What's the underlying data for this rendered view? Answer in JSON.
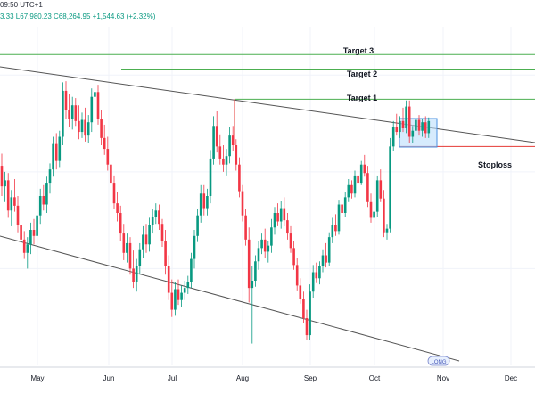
{
  "header": {
    "time": "09:50 UTC+1",
    "quote": "3.33  L67,980.23  C68,264.95  +1,544.63 (+2.32%)"
  },
  "colors": {
    "up": "#089981",
    "down": "#f23645",
    "target_line": "#4caf50",
    "stoploss_line": "#e53935",
    "channel_line": "#555555",
    "zone_fill": "#bbdefb",
    "zone_border": "#4a90e2"
  },
  "chart_data": {
    "type": "candlestick",
    "x_tick_labels": [
      "May",
      "Jun",
      "Jul",
      "Aug",
      "Sep",
      "Oct",
      "Nov",
      "Dec"
    ],
    "ylim": [
      48000,
      76000
    ],
    "levels": [
      {
        "name": "Target 3",
        "value": 73700
      },
      {
        "name": "Target 2",
        "value": 72500
      },
      {
        "name": "Target 1",
        "value": 70000
      },
      {
        "name": "Stoploss",
        "value": 66100
      }
    ],
    "annotations": [
      "Target 3",
      "Target 2",
      "Target 1",
      "Stoploss"
    ],
    "badge_label": "LONG",
    "series": [
      {
        "name": "price",
        "ohlc": [
          [
            64500,
            65500,
            62000,
            62800
          ],
          [
            62800,
            64000,
            61500,
            63300
          ],
          [
            63300,
            63900,
            60200,
            60800
          ],
          [
            60800,
            62500,
            59500,
            61900
          ],
          [
            61900,
            63400,
            60700,
            61200
          ],
          [
            61200,
            62000,
            59000,
            59600
          ],
          [
            59600,
            60400,
            57900,
            58400
          ],
          [
            58400,
            59100,
            56800,
            57300
          ],
          [
            57300,
            58600,
            56000,
            58000
          ],
          [
            58000,
            59800,
            57200,
            59200
          ],
          [
            59200,
            60100,
            58000,
            58700
          ],
          [
            58700,
            61000,
            58100,
            60400
          ],
          [
            60400,
            62600,
            59700,
            62000
          ],
          [
            62000,
            62900,
            60800,
            61300
          ],
          [
            61300,
            63600,
            60600,
            63100
          ],
          [
            63100,
            64700,
            62200,
            64200
          ],
          [
            64200,
            66900,
            63600,
            66300
          ],
          [
            66300,
            67200,
            64200,
            64900
          ],
          [
            64900,
            67400,
            64400,
            66900
          ],
          [
            66900,
            71400,
            66200,
            70700
          ],
          [
            70700,
            71500,
            68400,
            69100
          ],
          [
            69100,
            70400,
            67700,
            68400
          ],
          [
            68400,
            70200,
            67500,
            69500
          ],
          [
            69500,
            70100,
            67800,
            68200
          ],
          [
            68200,
            69500,
            66700,
            67300
          ],
          [
            67300,
            68900,
            66800,
            68300
          ],
          [
            68300,
            69300,
            66500,
            67000
          ],
          [
            67000,
            68700,
            66400,
            68100
          ],
          [
            68100,
            70900,
            67300,
            70200
          ],
          [
            70200,
            71600,
            69400,
            70600
          ],
          [
            70600,
            71200,
            67900,
            68400
          ],
          [
            68400,
            69100,
            66200,
            66800
          ],
          [
            66800,
            67900,
            65400,
            65900
          ],
          [
            65900,
            66900,
            64100,
            64600
          ],
          [
            64600,
            65200,
            62700,
            63100
          ],
          [
            63100,
            63700,
            60900,
            61400
          ],
          [
            61400,
            62300,
            59900,
            60600
          ],
          [
            60600,
            61200,
            58300,
            58900
          ],
          [
            58900,
            59700,
            56700,
            57300
          ],
          [
            57300,
            58900,
            56500,
            58100
          ],
          [
            58100,
            58600,
            55500,
            56000
          ],
          [
            56000,
            57500,
            54400,
            54900
          ],
          [
            54900,
            56800,
            54100,
            56200
          ],
          [
            56200,
            58100,
            55500,
            57600
          ],
          [
            57600,
            59500,
            56900,
            58800
          ],
          [
            58800,
            59700,
            57300,
            58000
          ],
          [
            58000,
            60200,
            57400,
            59600
          ],
          [
            59600,
            60900,
            58900,
            60300
          ],
          [
            60300,
            61400,
            59700,
            60800
          ],
          [
            60800,
            61300,
            59200,
            59700
          ],
          [
            59700,
            60100,
            57800,
            58300
          ],
          [
            58300,
            59200,
            55500,
            56200
          ],
          [
            56200,
            57100,
            53400,
            54000
          ],
          [
            54000,
            55100,
            52000,
            52600
          ],
          [
            52600,
            54900,
            52100,
            54300
          ],
          [
            54300,
            55100,
            53000,
            53400
          ],
          [
            53400,
            54600,
            52800,
            54000
          ],
          [
            54000,
            55000,
            53400,
            54400
          ],
          [
            54400,
            55400,
            53900,
            54900
          ],
          [
            54900,
            57300,
            54400,
            56800
          ],
          [
            56800,
            59200,
            56000,
            58700
          ],
          [
            58700,
            60900,
            58200,
            60400
          ],
          [
            60400,
            62900,
            59800,
            62200
          ],
          [
            62200,
            62900,
            60400,
            61000
          ],
          [
            61000,
            62600,
            60400,
            62000
          ],
          [
            62000,
            65800,
            61400,
            65100
          ],
          [
            65100,
            68600,
            64600,
            67800
          ],
          [
            67800,
            69000,
            65600,
            66100
          ],
          [
            66100,
            67100,
            64600,
            65100
          ],
          [
            65100,
            66200,
            64000,
            64600
          ],
          [
            64600,
            65900,
            63700,
            65300
          ],
          [
            65300,
            67700,
            64700,
            67000
          ],
          [
            67000,
            67800,
            65700,
            66200
          ],
          [
            66200,
            66700,
            64100,
            64600
          ],
          [
            64600,
            65200,
            61900,
            62400
          ],
          [
            62400,
            62900,
            59900,
            60400
          ],
          [
            60400,
            60900,
            57900,
            58400
          ],
          [
            58400,
            59400,
            53200,
            54400
          ],
          [
            54400,
            56200,
            49800,
            55000
          ],
          [
            55000,
            57100,
            54500,
            56600
          ],
          [
            56600,
            58300,
            55900,
            57700
          ],
          [
            57700,
            58900,
            57200,
            58400
          ],
          [
            58400,
            59300,
            56900,
            57400
          ],
          [
            57400,
            58300,
            56500,
            57900
          ],
          [
            57900,
            60100,
            57300,
            59400
          ],
          [
            59400,
            61100,
            58800,
            60600
          ],
          [
            60600,
            61400,
            59500,
            59900
          ],
          [
            59900,
            61600,
            59300,
            61000
          ],
          [
            61000,
            61900,
            59500,
            60000
          ],
          [
            60000,
            60600,
            58400,
            58900
          ],
          [
            58900,
            59500,
            57300,
            57700
          ],
          [
            57700,
            58300,
            55900,
            56300
          ],
          [
            56300,
            56900,
            54200,
            54600
          ],
          [
            54600,
            55200,
            53100,
            53500
          ],
          [
            53500,
            54100,
            51500,
            51900
          ],
          [
            51900,
            52600,
            50100,
            50500
          ],
          [
            50500,
            54700,
            50100,
            54100
          ],
          [
            54100,
            56300,
            53600,
            55700
          ],
          [
            55700,
            56500,
            54800,
            55200
          ],
          [
            55200,
            56600,
            54700,
            56200
          ],
          [
            56200,
            57600,
            55700,
            57100
          ],
          [
            57100,
            58100,
            56100,
            56500
          ],
          [
            56500,
            59000,
            56200,
            58600
          ],
          [
            58600,
            60200,
            58100,
            59600
          ],
          [
            59600,
            60500,
            58700,
            59100
          ],
          [
            59100,
            61700,
            58800,
            61300
          ],
          [
            61300,
            61800,
            60100,
            60600
          ],
          [
            60600,
            62300,
            60300,
            61900
          ],
          [
            61900,
            63400,
            61500,
            62900
          ],
          [
            62900,
            63300,
            61800,
            62200
          ],
          [
            62200,
            64100,
            61900,
            63700
          ],
          [
            63700,
            64300,
            62600,
            63100
          ],
          [
            63100,
            64900,
            62900,
            64600
          ],
          [
            64600,
            65400,
            63600,
            63900
          ],
          [
            63900,
            64500,
            61100,
            61500
          ],
          [
            61500,
            62200,
            59800,
            60200
          ],
          [
            60200,
            61100,
            59500,
            60700
          ],
          [
            60700,
            63700,
            60300,
            63300
          ],
          [
            63300,
            64200,
            61500,
            61800
          ],
          [
            61800,
            62500,
            58600,
            59000
          ],
          [
            59000,
            59700,
            58400,
            59300
          ],
          [
            59300,
            66800,
            59000,
            66100
          ],
          [
            66100,
            68200,
            65700,
            67700
          ],
          [
            67700,
            68800,
            67000,
            67300
          ],
          [
            67300,
            68600,
            66800,
            68200
          ],
          [
            68200,
            69300,
            67300,
            67600
          ],
          [
            67600,
            69900,
            67200,
            69400
          ],
          [
            69400,
            69900,
            66400,
            66900
          ],
          [
            66900,
            67800,
            66400,
            67400
          ],
          [
            67400,
            68800,
            66900,
            68300
          ],
          [
            68300,
            68700,
            67000,
            67400
          ],
          [
            67400,
            68400,
            66900,
            68100
          ],
          [
            68100,
            68600,
            66800,
            67200
          ],
          [
            67200,
            68500,
            66800,
            68200
          ]
        ]
      }
    ]
  }
}
